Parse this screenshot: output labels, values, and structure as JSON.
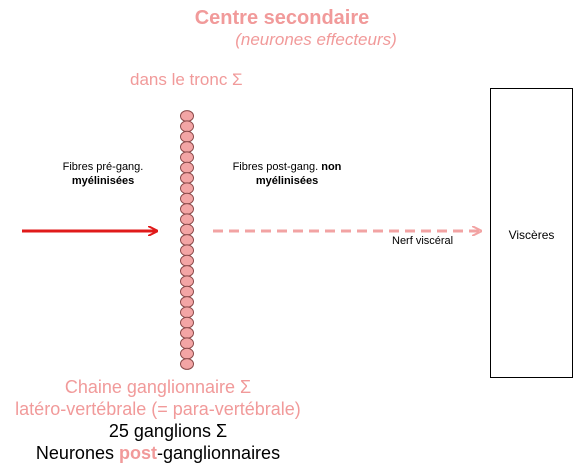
{
  "title": {
    "line1": "Centre secondaire",
    "line2": "(neurones effecteurs)"
  },
  "trunk_label": "dans le tronc Σ",
  "pre_fibers": {
    "line1": "Fibres pré-gang.",
    "line2": "myélinisées"
  },
  "post_fibers": {
    "line1_prefix": "Fibres post-gang. ",
    "line1_bold": "non",
    "line2": "myélinisées"
  },
  "nerve_label": "Nerf viscéral",
  "viscera_label": "Viscères",
  "bottom": {
    "chain_line1": "Chaine ganglionnaire Σ",
    "chain_line2": "latéro-vertébrale (= para-vertébrale)",
    "ganglia_line": "25 ganglions Σ",
    "neurons_prefix": "Neurones ",
    "neurons_post": "post",
    "neurons_suffix": "-ganglionnaires"
  },
  "colors": {
    "pink": "#f19a9a",
    "red_arrow": "#e01a1a",
    "dashed_arrow": "#f2a3a3",
    "ganglion_fill": "#f3a5a5",
    "ganglion_stroke": "#8a4a4a",
    "text_black": "#000000"
  },
  "ganglion_count": 25
}
